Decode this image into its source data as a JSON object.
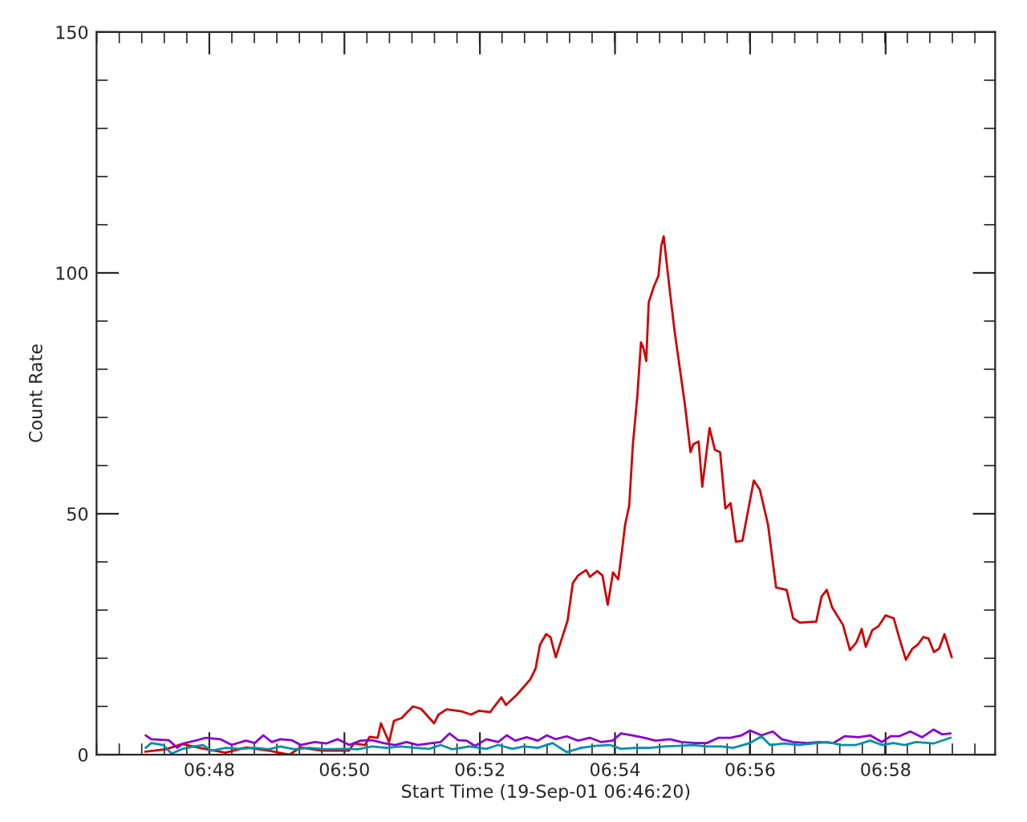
{
  "chart_data": {
    "type": "line",
    "xlabel": "Start Time (19-Sep-01 06:46:20)",
    "ylabel": "Count Rate",
    "xlim": [
      6.7722,
      6.9937
    ],
    "ylim": [
      0,
      150
    ],
    "xticks": [
      {
        "value": 6.8,
        "label": "06:48"
      },
      {
        "value": 6.8333,
        "label": "06:50"
      },
      {
        "value": 6.8667,
        "label": "06:52"
      },
      {
        "value": 6.9,
        "label": "06:54"
      },
      {
        "value": 6.9333,
        "label": "06:56"
      },
      {
        "value": 6.9667,
        "label": "06:58"
      }
    ],
    "yticks": [
      0,
      50,
      100,
      150
    ],
    "grid": false,
    "legend": false,
    "series": [
      {
        "color": "#d00000",
        "x": [
          6.7842,
          6.7893,
          6.7933,
          6.7988,
          6.804,
          6.8091,
          6.8146,
          6.8198,
          6.8225,
          6.8277,
          6.8344,
          6.8356,
          6.8384,
          6.8395,
          6.8415,
          6.8423,
          6.8443,
          6.8455,
          6.8474,
          6.8502,
          6.8522,
          6.8554,
          6.8565,
          6.8585,
          6.8621,
          6.8645,
          6.8664,
          6.8692,
          6.872,
          6.8731,
          6.8759,
          6.8791,
          6.8804,
          6.8815,
          6.883,
          6.8841,
          6.8854,
          6.887,
          6.8883,
          6.8896,
          6.8909,
          6.8929,
          6.8938,
          6.8956,
          6.8969,
          6.8982,
          6.8995,
          6.9008,
          6.9017,
          6.9025,
          6.9035,
          6.9044,
          6.9055,
          6.9064,
          6.907,
          6.9077,
          6.9083,
          6.9096,
          6.9107,
          6.9114,
          6.912,
          6.9127,
          6.9136,
          6.9147,
          6.916,
          6.9173,
          6.9186,
          6.9193,
          6.9206,
          6.9215,
          6.9233,
          6.9246,
          6.9259,
          6.9272,
          6.9285,
          6.9298,
          6.9314,
          6.9342,
          6.9357,
          6.9377,
          6.9397,
          6.9423,
          6.9439,
          6.9456,
          6.9496,
          6.9509,
          6.9522,
          6.9535,
          6.9562,
          6.9579,
          6.9595,
          6.9608,
          6.9618,
          6.9634,
          6.965,
          6.9667,
          6.9687,
          6.97,
          6.9717,
          6.9733,
          6.9746,
          6.976,
          6.9773,
          6.9786,
          6.9799,
          6.9812,
          6.983
        ],
        "values": [
          0.6,
          1.1,
          2.2,
          1.2,
          0.4,
          1.5,
          0.8,
          0,
          1.5,
          0.8,
          0.8,
          2.3,
          2.0,
          3.7,
          3.5,
          6.5,
          2.6,
          7.0,
          7.6,
          10.0,
          9.5,
          6.5,
          8.3,
          9.4,
          9.0,
          8.3,
          9.1,
          8.8,
          11.9,
          10.3,
          12.5,
          15.6,
          17.8,
          22.8,
          25.0,
          24.4,
          20.2,
          24.4,
          27.8,
          35.6,
          37.2,
          38.3,
          36.9,
          38.1,
          37.2,
          31.1,
          37.8,
          36.4,
          42.2,
          47.8,
          51.7,
          64.4,
          74.4,
          85.6,
          84.4,
          81.7,
          93.9,
          97.2,
          99.4,
          105.6,
          107.6,
          102.3,
          95.6,
          87.8,
          80.0,
          72.2,
          62.8,
          64.4,
          65.0,
          55.6,
          67.8,
          63.3,
          62.8,
          51.1,
          52.2,
          44.2,
          44.4,
          56.9,
          55.0,
          47.8,
          34.7,
          34.2,
          28.3,
          27.4,
          27.6,
          32.8,
          34.2,
          30.6,
          26.9,
          21.7,
          23.3,
          26.1,
          22.4,
          25.8,
          26.7,
          28.9,
          28.3,
          24.4,
          19.7,
          22.0,
          22.8,
          24.4,
          24.1,
          21.3,
          22.0,
          25.0,
          20.2
        ]
      },
      {
        "color": "#8a00d4",
        "x": [
          6.7843,
          6.7857,
          6.79,
          6.7921,
          6.7935,
          6.797,
          6.7992,
          6.8027,
          6.8055,
          6.809,
          6.8112,
          6.8133,
          6.8154,
          6.8175,
          6.8203,
          6.8225,
          6.826,
          6.8288,
          6.8316,
          6.8345,
          6.8373,
          6.8401,
          6.8429,
          6.8458,
          6.8486,
          6.8514,
          6.8542,
          6.857,
          6.8592,
          6.8613,
          6.8634,
          6.8655,
          6.8683,
          6.8712,
          6.8733,
          6.8754,
          6.8782,
          6.881,
          6.8832,
          6.8853,
          6.8881,
          6.8909,
          6.8938,
          6.8966,
          6.8994,
          6.9015,
          6.9043,
          6.9072,
          6.91,
          6.9135,
          6.9163,
          6.9199,
          6.9227,
          6.9255,
          6.9284,
          6.9312,
          6.9333,
          6.9361,
          6.9389,
          6.9411,
          6.9439,
          6.9474,
          6.9502,
          6.9538,
          6.9566,
          6.9601,
          6.9629,
          6.9658,
          6.9679,
          6.97,
          6.9728,
          6.9757,
          6.9785,
          6.9806,
          6.9827
        ],
        "values": [
          4.0,
          3.2,
          3.0,
          1.4,
          2.3,
          3.0,
          3.5,
          3.2,
          2.0,
          2.9,
          2.4,
          4.0,
          2.6,
          3.2,
          3.0,
          2.0,
          2.6,
          2.3,
          3.2,
          2.0,
          2.9,
          3.0,
          2.4,
          2.0,
          2.6,
          2.0,
          2.3,
          2.6,
          4.4,
          3.0,
          2.9,
          1.8,
          3.2,
          2.6,
          4.0,
          2.9,
          3.6,
          2.9,
          4.0,
          3.2,
          3.8,
          2.9,
          3.5,
          2.6,
          2.9,
          4.4,
          4.0,
          3.5,
          2.9,
          3.2,
          2.6,
          2.4,
          2.4,
          3.5,
          3.5,
          4.0,
          5.0,
          4.0,
          4.8,
          3.2,
          2.6,
          2.4,
          2.6,
          2.4,
          3.8,
          3.6,
          4.0,
          2.6,
          3.8,
          3.8,
          4.8,
          3.6,
          5.2,
          4.2,
          4.4
        ]
      },
      {
        "color": "#0090a8",
        "x": [
          6.7843,
          6.7857,
          6.7886,
          6.7907,
          6.7935,
          6.7963,
          6.7984,
          6.8006,
          6.8041,
          6.8076,
          6.8112,
          6.8147,
          6.8175,
          6.821,
          6.8246,
          6.8288,
          6.833,
          6.8366,
          6.8401,
          6.8436,
          6.8472,
          6.8507,
          6.8542,
          6.857,
          6.8599,
          6.8641,
          6.8683,
          6.8712,
          6.8747,
          6.8775,
          6.881,
          6.8846,
          6.8881,
          6.8916,
          6.8952,
          6.8987,
          6.9015,
          6.9051,
          6.9086,
          6.9121,
          6.9156,
          6.9192,
          6.9227,
          6.9262,
          6.9291,
          6.9333,
          6.9361,
          6.9382,
          6.9418,
          6.9453,
          6.9488,
          6.9524,
          6.9559,
          6.9594,
          6.9629,
          6.9658,
          6.9686,
          6.9714,
          6.9742,
          6.9785,
          6.9827
        ],
        "values": [
          1.4,
          2.4,
          2.0,
          0.2,
          1.2,
          1.7,
          2.0,
          0.8,
          1.4,
          1.2,
          1.4,
          1.1,
          1.7,
          1.1,
          1.4,
          1.1,
          1.2,
          1.1,
          1.7,
          1.4,
          1.7,
          1.4,
          1.2,
          2.0,
          1.1,
          1.7,
          1.2,
          2.0,
          1.2,
          1.7,
          1.4,
          2.4,
          0.5,
          1.4,
          1.8,
          2.0,
          1.2,
          1.4,
          1.4,
          1.7,
          1.8,
          2.0,
          1.7,
          1.7,
          1.4,
          2.4,
          3.8,
          2.0,
          2.3,
          2.0,
          2.3,
          2.6,
          2.0,
          2.0,
          2.9,
          2.0,
          2.4,
          2.0,
          2.6,
          2.3,
          3.5
        ]
      }
    ]
  }
}
